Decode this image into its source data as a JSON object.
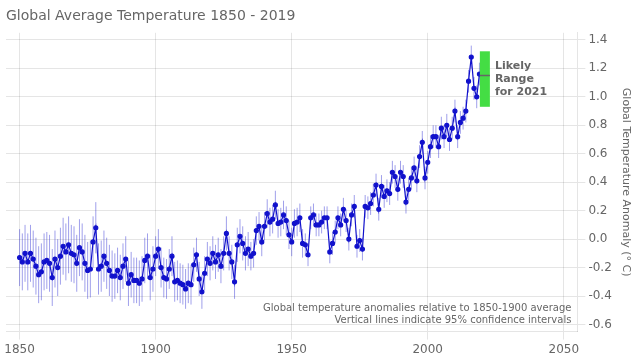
{
  "chart_data": {
    "type": "line",
    "title": "Global Average Temperature 1850 - 2019",
    "y_label": "Global Temperature Anomaly (° C)",
    "annotation": "Global temperature anomalies relative to 1850-1900 average\nVertical lines indicate 95% confidence intervals",
    "x": [
      1850,
      1851,
      1852,
      1853,
      1854,
      1855,
      1856,
      1857,
      1858,
      1859,
      1860,
      1861,
      1862,
      1863,
      1864,
      1865,
      1866,
      1867,
      1868,
      1869,
      1870,
      1871,
      1872,
      1873,
      1874,
      1875,
      1876,
      1877,
      1878,
      1879,
      1880,
      1881,
      1882,
      1883,
      1884,
      1885,
      1886,
      1887,
      1888,
      1889,
      1890,
      1891,
      1892,
      1893,
      1894,
      1895,
      1896,
      1897,
      1898,
      1899,
      1900,
      1901,
      1902,
      1903,
      1904,
      1905,
      1906,
      1907,
      1908,
      1909,
      1910,
      1911,
      1912,
      1913,
      1914,
      1915,
      1916,
      1917,
      1918,
      1919,
      1920,
      1921,
      1922,
      1923,
      1924,
      1925,
      1926,
      1927,
      1928,
      1929,
      1930,
      1931,
      1932,
      1933,
      1934,
      1935,
      1936,
      1937,
      1938,
      1939,
      1940,
      1941,
      1942,
      1943,
      1944,
      1945,
      1946,
      1947,
      1948,
      1949,
      1950,
      1951,
      1952,
      1953,
      1954,
      1955,
      1956,
      1957,
      1958,
      1959,
      1960,
      1961,
      1962,
      1963,
      1964,
      1965,
      1966,
      1967,
      1968,
      1969,
      1970,
      1971,
      1972,
      1973,
      1974,
      1975,
      1976,
      1977,
      1978,
      1979,
      1980,
      1981,
      1982,
      1983,
      1984,
      1985,
      1986,
      1987,
      1988,
      1989,
      1990,
      1991,
      1992,
      1993,
      1994,
      1995,
      1996,
      1997,
      1998,
      1999,
      2000,
      2001,
      2002,
      2003,
      2004,
      2005,
      2006,
      2007,
      2008,
      2009,
      2010,
      2011,
      2012,
      2013,
      2014,
      2015,
      2016,
      2017,
      2018,
      2019
    ],
    "series": [
      {
        "color": "#1111cc",
        "marker": "o",
        "values": [
          -0.13,
          -0.16,
          -0.1,
          -0.16,
          -0.1,
          -0.14,
          -0.19,
          -0.25,
          -0.23,
          -0.16,
          -0.15,
          -0.17,
          -0.27,
          -0.14,
          -0.2,
          -0.12,
          -0.05,
          -0.09,
          -0.04,
          -0.1,
          -0.11,
          -0.17,
          -0.06,
          -0.09,
          -0.17,
          -0.22,
          -0.21,
          -0.02,
          0.08,
          -0.21,
          -0.19,
          -0.12,
          -0.17,
          -0.22,
          -0.26,
          -0.26,
          -0.22,
          -0.27,
          -0.19,
          -0.14,
          -0.31,
          -0.25,
          -0.29,
          -0.29,
          -0.31,
          -0.28,
          -0.15,
          -0.12,
          -0.27,
          -0.21,
          -0.12,
          -0.07,
          -0.2,
          -0.27,
          -0.28,
          -0.21,
          -0.12,
          -0.3,
          -0.29,
          -0.31,
          -0.32,
          -0.35,
          -0.31,
          -0.32,
          -0.18,
          -0.11,
          -0.28,
          -0.37,
          -0.24,
          -0.14,
          -0.17,
          -0.1,
          -0.16,
          -0.11,
          -0.19,
          -0.1,
          0.04,
          -0.1,
          -0.16,
          -0.3,
          -0.04,
          0.02,
          -0.03,
          -0.1,
          -0.07,
          -0.12,
          -0.1,
          0.06,
          0.09,
          -0.02,
          0.09,
          0.18,
          0.12,
          0.14,
          0.24,
          0.11,
          0.12,
          0.17,
          0.13,
          0.03,
          -0.02,
          0.11,
          0.12,
          0.15,
          -0.03,
          -0.04,
          -0.11,
          0.15,
          0.17,
          0.1,
          0.1,
          0.12,
          0.15,
          0.15,
          -0.09,
          -0.03,
          0.05,
          0.15,
          0.1,
          0.21,
          0.13,
          -0.0,
          0.17,
          0.23,
          -0.05,
          -0.01,
          -0.07,
          0.23,
          0.22,
          0.25,
          0.31,
          0.38,
          0.21,
          0.37,
          0.3,
          0.34,
          0.32,
          0.47,
          0.44,
          0.35,
          0.47,
          0.44,
          0.26,
          0.35,
          0.43,
          0.5,
          0.41,
          0.58,
          0.68,
          0.43,
          0.54,
          0.65,
          0.72,
          0.72,
          0.65,
          0.78,
          0.72,
          0.8,
          0.7,
          0.78,
          0.9,
          0.72,
          0.82,
          0.85,
          0.9,
          1.11,
          1.28,
          1.06,
          1.0,
          1.16
        ],
        "error": [
          0.2,
          0.2,
          0.2,
          0.2,
          0.2,
          0.2,
          0.2,
          0.2,
          0.2,
          0.2,
          0.2,
          0.2,
          0.2,
          0.2,
          0.2,
          0.2,
          0.2,
          0.2,
          0.2,
          0.2,
          0.2,
          0.2,
          0.2,
          0.2,
          0.2,
          0.2,
          0.2,
          0.18,
          0.18,
          0.18,
          0.18,
          0.18,
          0.18,
          0.18,
          0.18,
          0.16,
          0.16,
          0.16,
          0.16,
          0.16,
          0.16,
          0.16,
          0.16,
          0.16,
          0.16,
          0.16,
          0.16,
          0.16,
          0.16,
          0.16,
          0.14,
          0.14,
          0.14,
          0.14,
          0.14,
          0.14,
          0.14,
          0.14,
          0.14,
          0.14,
          0.14,
          0.14,
          0.14,
          0.14,
          0.12,
          0.12,
          0.12,
          0.12,
          0.12,
          0.12,
          0.12,
          0.12,
          0.12,
          0.12,
          0.12,
          0.12,
          0.12,
          0.12,
          0.12,
          0.12,
          0.12,
          0.12,
          0.12,
          0.12,
          0.12,
          0.1,
          0.1,
          0.1,
          0.1,
          0.1,
          0.1,
          0.1,
          0.1,
          0.1,
          0.1,
          0.1,
          0.1,
          0.1,
          0.1,
          0.1,
          0.1,
          0.1,
          0.1,
          0.1,
          0.1,
          0.08,
          0.08,
          0.08,
          0.08,
          0.08,
          0.08,
          0.08,
          0.08,
          0.08,
          0.08,
          0.08,
          0.08,
          0.08,
          0.08,
          0.08,
          0.08,
          0.08,
          0.08,
          0.08,
          0.08,
          0.08,
          0.08,
          0.08,
          0.08,
          0.08,
          0.08,
          0.08,
          0.08,
          0.08,
          0.08,
          0.08,
          0.08,
          0.08,
          0.08,
          0.08,
          0.08,
          0.08,
          0.08,
          0.08,
          0.08,
          0.08,
          0.08,
          0.08,
          0.08,
          0.08,
          0.08,
          0.08,
          0.08,
          0.08,
          0.08,
          0.08,
          0.08,
          0.08,
          0.08,
          0.08,
          0.08,
          0.08,
          0.08,
          0.08,
          0.08,
          0.08,
          0.08,
          0.08,
          0.08,
          0.08
        ]
      }
    ],
    "likely_range": {
      "x": 2021,
      "low": 0.93,
      "high": 1.32,
      "mid": 1.15,
      "label": "Likely\nRange\nfor 2021",
      "color": "#44dd44"
    },
    "xlim": [
      1845,
      2055
    ],
    "xticks": [
      1850,
      1900,
      1950,
      2000,
      2050
    ],
    "ylim": [
      -0.65,
      1.45
    ],
    "yticks": [
      -0.6,
      -0.4,
      -0.2,
      {
        "value": 0,
        "label": "0.0"
      },
      0.2,
      0.4,
      0.6,
      0.8,
      {
        "value": 1,
        "label": "1.0"
      },
      1.2,
      1.4
    ],
    "grid": true
  }
}
